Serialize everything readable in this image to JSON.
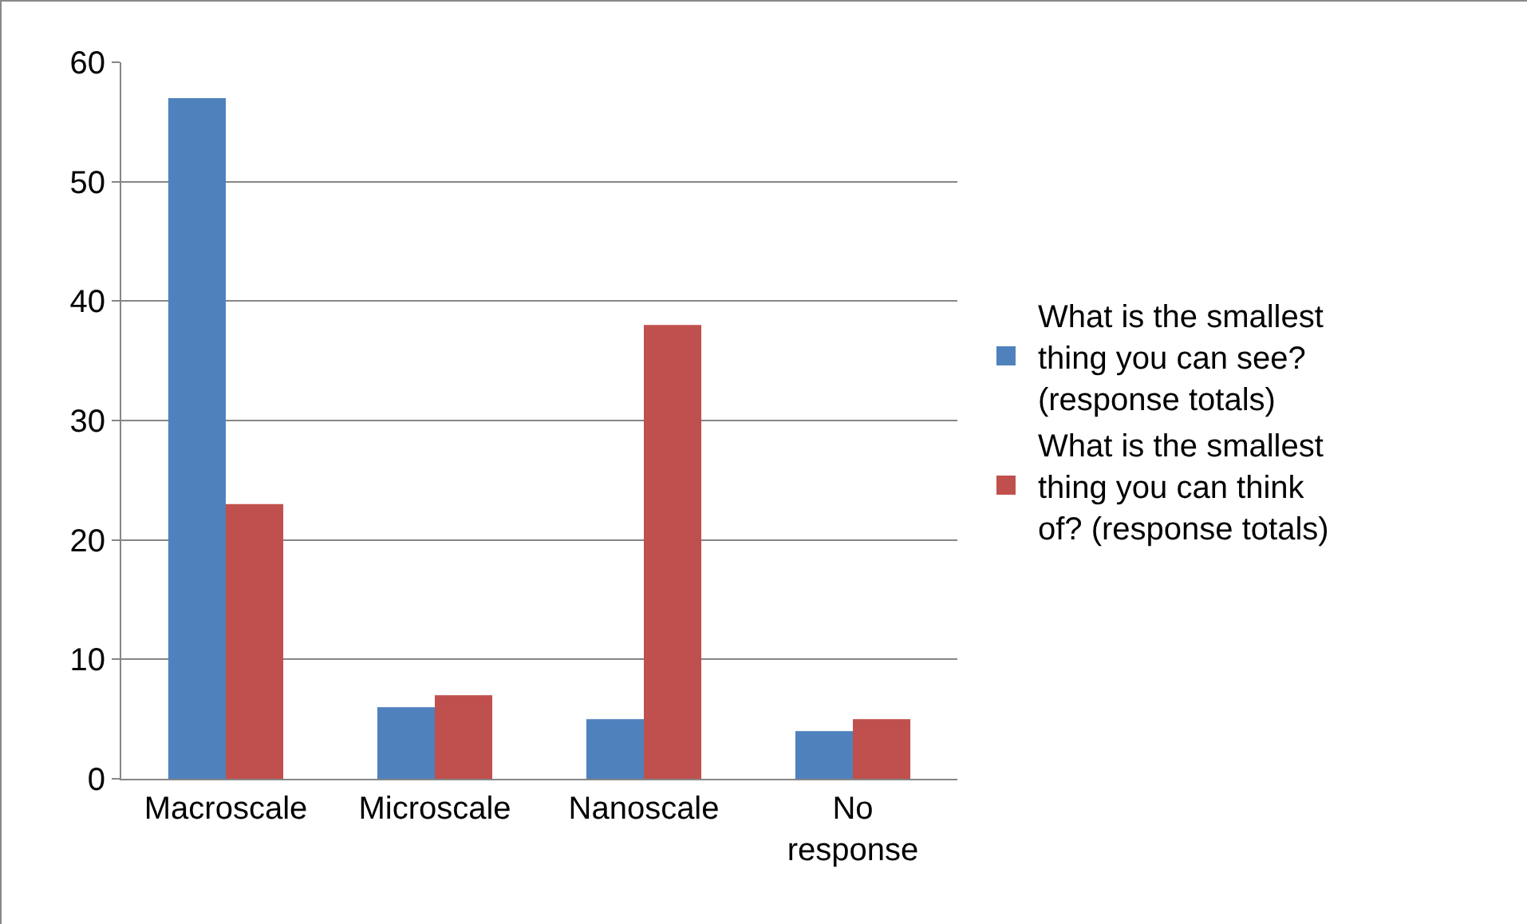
{
  "chart_data": {
    "type": "bar",
    "categories": [
      "Macroscale",
      "Microscale",
      "Nanoscale",
      "No response"
    ],
    "series": [
      {
        "name": "What is the smallest thing you can see? (response totals)",
        "color": "#4f81bd",
        "values": [
          57,
          6,
          5,
          4
        ]
      },
      {
        "name": "What is the smallest thing you can think of? (response totals)",
        "color": "#c0504d",
        "values": [
          23,
          7,
          38,
          5
        ]
      }
    ],
    "ylim": [
      0,
      60
    ],
    "yticks": [
      0,
      10,
      20,
      30,
      40,
      50,
      60
    ],
    "grid": "y",
    "legend": "right"
  }
}
